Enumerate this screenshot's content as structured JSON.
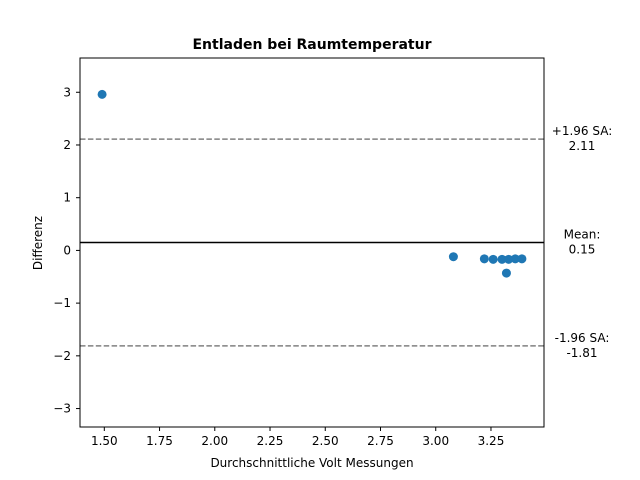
{
  "chart_data": {
    "type": "scatter",
    "title": "Entladen bei Raumtemperatur",
    "xlabel": "Durchschnittliche Volt Messungen",
    "ylabel": "Differenz",
    "xlim": [
      1.39,
      3.49
    ],
    "ylim": [
      -3.35,
      3.65
    ],
    "xticks": [
      1.5,
      1.75,
      2.0,
      2.25,
      2.5,
      2.75,
      3.0,
      3.25
    ],
    "xtick_labels": [
      "1.50",
      "1.75",
      "2.00",
      "2.25",
      "2.50",
      "2.75",
      "3.00",
      "3.25"
    ],
    "yticks": [
      -3,
      -2,
      -1,
      0,
      1,
      2,
      3
    ],
    "ytick_labels": [
      "−3",
      "−2",
      "−1",
      "0",
      "1",
      "2",
      "3"
    ],
    "grid": false,
    "points": [
      {
        "x": 1.49,
        "y": 2.96
      },
      {
        "x": 3.08,
        "y": -0.12
      },
      {
        "x": 3.22,
        "y": -0.16
      },
      {
        "x": 3.26,
        "y": -0.17
      },
      {
        "x": 3.3,
        "y": -0.17
      },
      {
        "x": 3.32,
        "y": -0.43
      },
      {
        "x": 3.33,
        "y": -0.17
      },
      {
        "x": 3.36,
        "y": -0.16
      },
      {
        "x": 3.39,
        "y": -0.16
      }
    ],
    "lines": [
      {
        "y": 2.11,
        "style": "dashed",
        "color": "#808080",
        "label_lines": [
          "+1.96 SA:",
          "2.11"
        ]
      },
      {
        "y": 0.15,
        "style": "solid",
        "color": "#000000",
        "label_lines": [
          "Mean:",
          "0.15"
        ]
      },
      {
        "y": -1.81,
        "style": "dashed",
        "color": "#808080",
        "label_lines": [
          "-1.96 SA:",
          "-1.81"
        ]
      }
    ],
    "colors": {
      "points": "#1f77b4"
    }
  }
}
